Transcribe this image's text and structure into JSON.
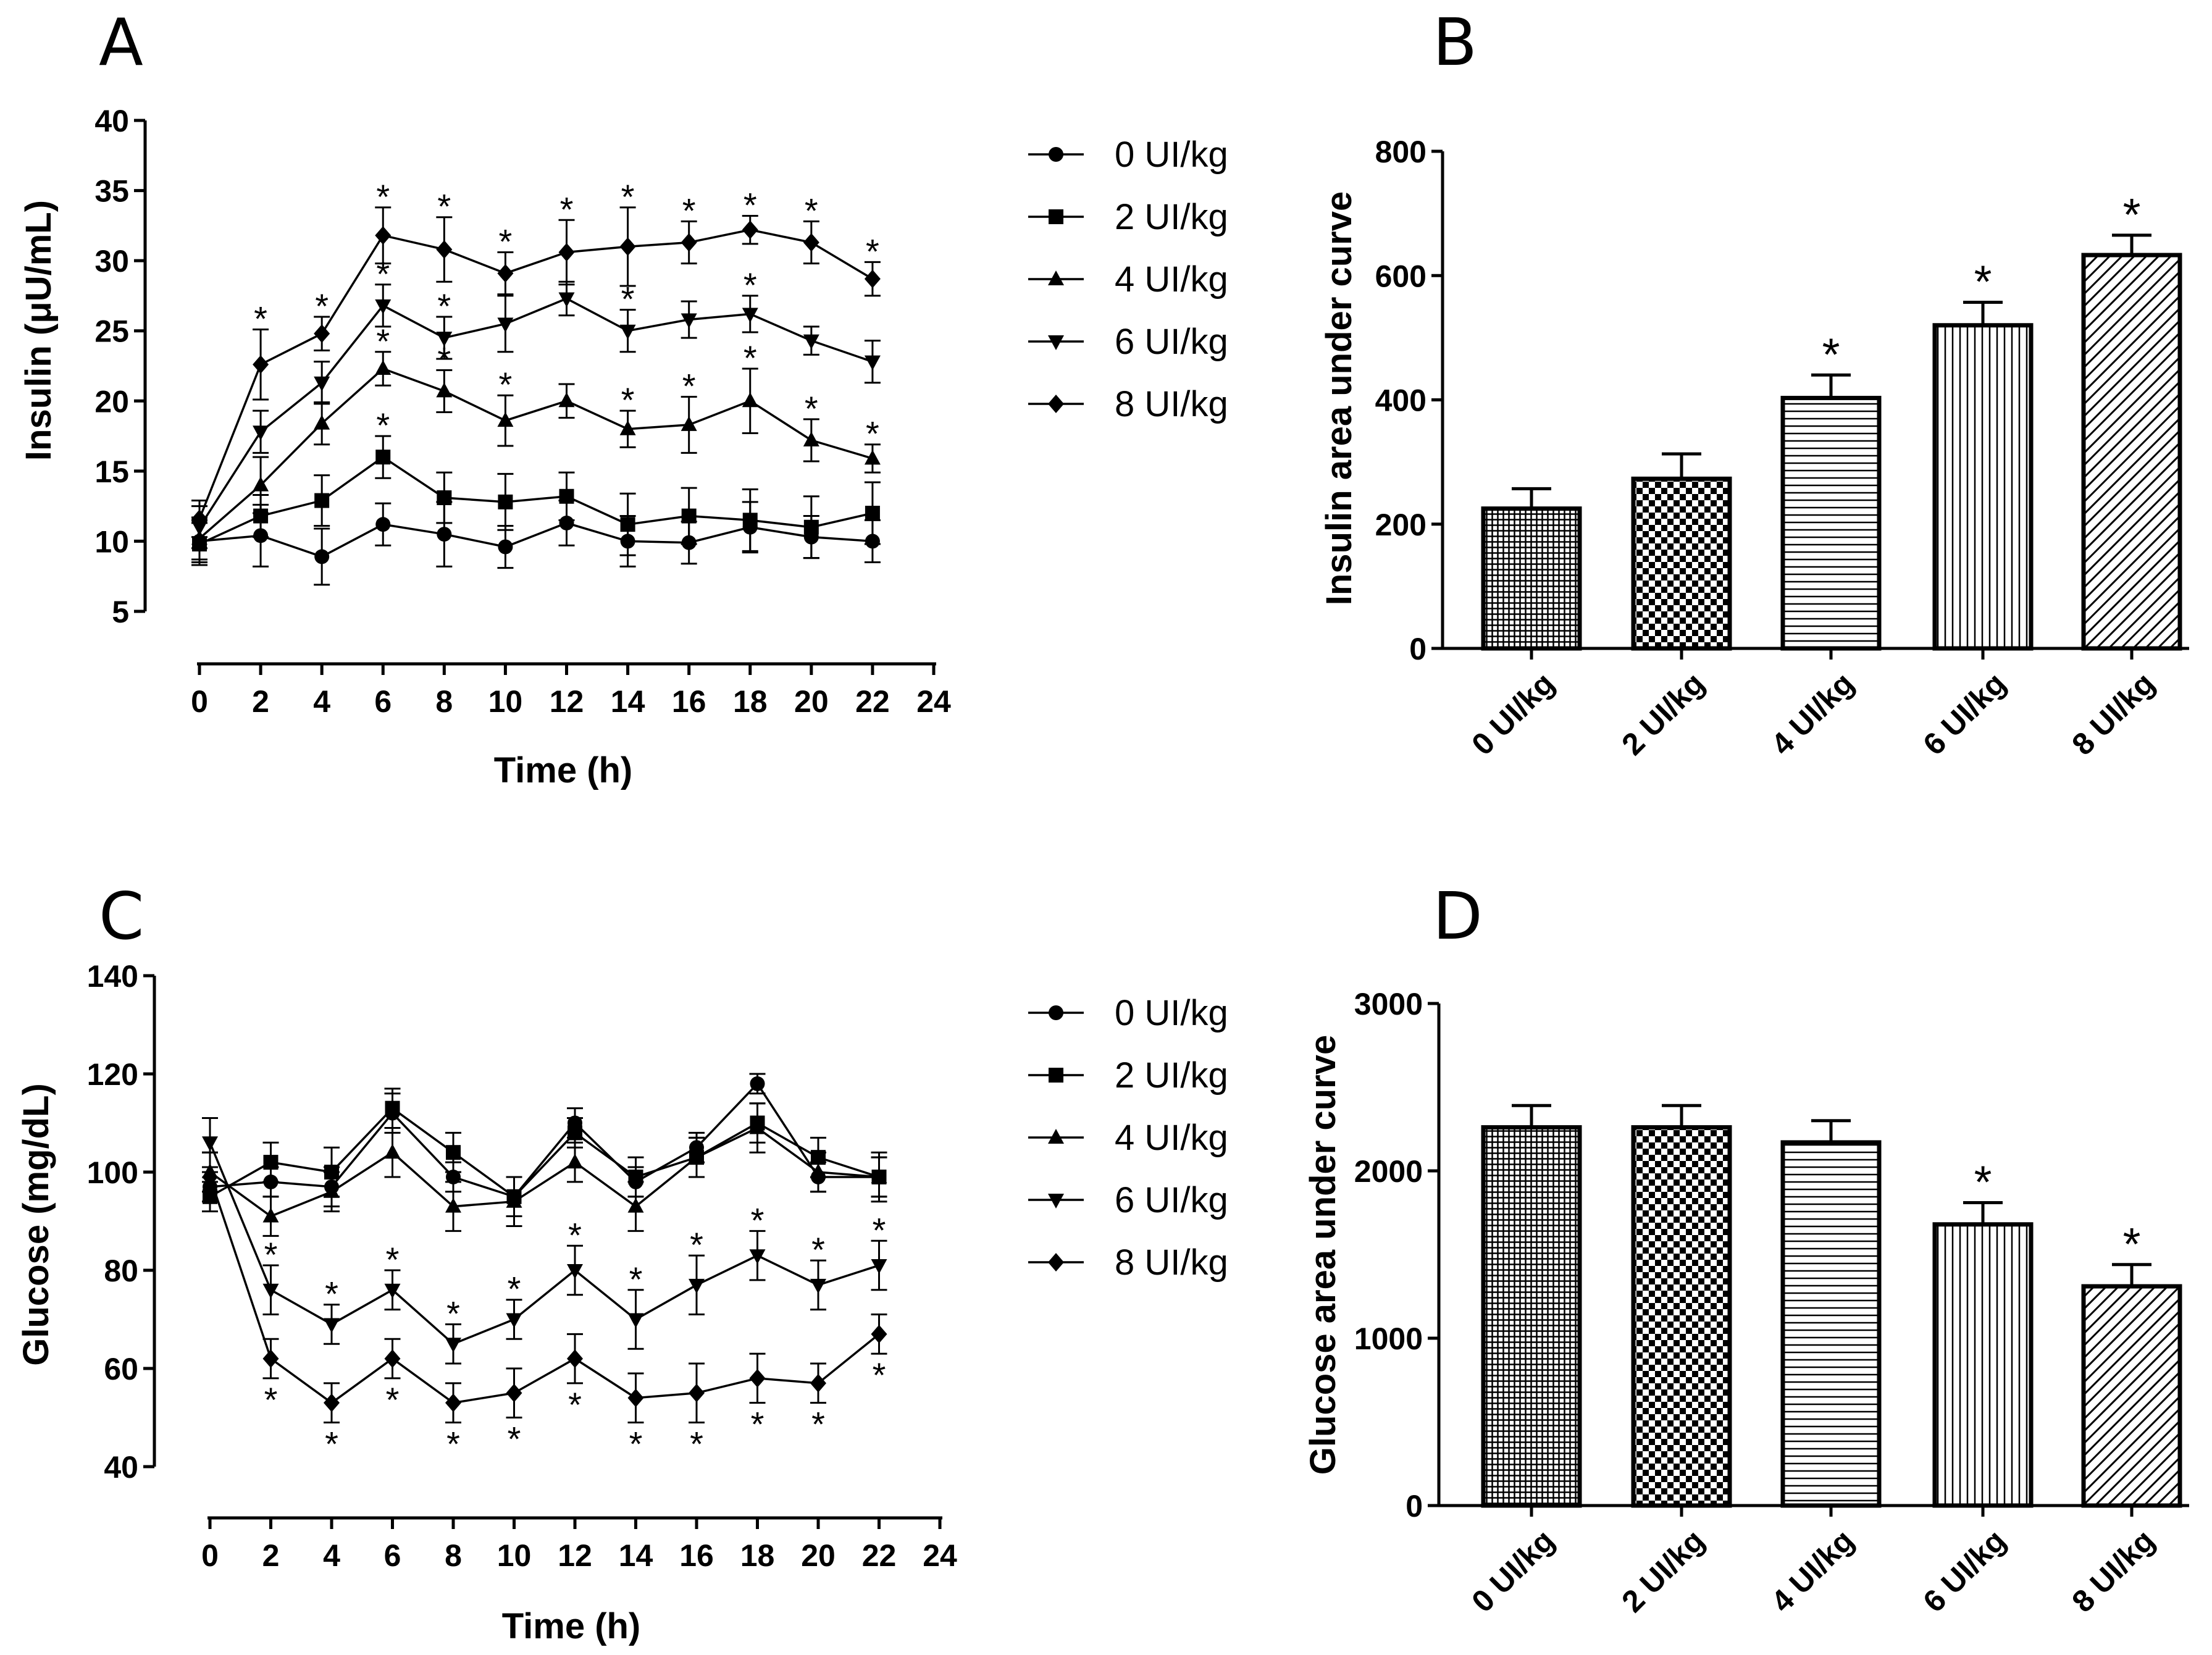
{
  "panels": [
    {
      "id": "A",
      "label": "A"
    },
    {
      "id": "B",
      "label": "B"
    },
    {
      "id": "C",
      "label": "C"
    },
    {
      "id": "D",
      "label": "D"
    }
  ],
  "chart_data": [
    {
      "id": "A",
      "type": "line",
      "xlabel": "Time (h)",
      "ylabel": "Insulin (μU/mL)",
      "xlim": [
        0,
        24
      ],
      "ylim": [
        5,
        40
      ],
      "xticks": [
        "0",
        "2",
        "4",
        "6",
        "8",
        "10",
        "12",
        "14",
        "16",
        "18",
        "20",
        "22",
        "24"
      ],
      "yticks": [
        "5",
        "10",
        "15",
        "20",
        "25",
        "30",
        "35",
        "40"
      ],
      "x": [
        0,
        2,
        4,
        6,
        8,
        10,
        12,
        14,
        16,
        18,
        20,
        22
      ],
      "series": [
        {
          "name": "0 UI/kg",
          "marker": "circle",
          "values": [
            10.0,
            10.4,
            8.9,
            11.2,
            10.5,
            9.6,
            11.3,
            10.0,
            9.9,
            11.0,
            10.3,
            10.0
          ],
          "errors": [
            1.5,
            2.2,
            2.0,
            1.5,
            2.3,
            1.5,
            1.6,
            1.8,
            1.5,
            1.8,
            1.5,
            1.5
          ],
          "stars_above": [],
          "stars_below": []
        },
        {
          "name": "2 UI/kg",
          "marker": "square",
          "values": [
            9.8,
            11.8,
            12.9,
            16.0,
            13.1,
            12.8,
            13.2,
            11.2,
            11.8,
            11.5,
            11.0,
            12.0
          ],
          "errors": [
            1.5,
            1.5,
            1.8,
            1.5,
            1.8,
            2.0,
            1.7,
            2.2,
            2.0,
            2.2,
            2.2,
            2.2
          ],
          "stars_above": [
            6
          ],
          "stars_below": []
        },
        {
          "name": "4 UI/kg",
          "marker": "triangle-up",
          "values": [
            10.2,
            14.0,
            18.4,
            22.3,
            20.7,
            18.6,
            20.0,
            18.0,
            18.3,
            20.0,
            17.2,
            15.9
          ],
          "errors": [
            1.5,
            2.0,
            1.5,
            1.2,
            1.5,
            1.8,
            1.2,
            1.3,
            2.0,
            2.3,
            1.5,
            1.0
          ],
          "stars_above": [
            6,
            8,
            10,
            14,
            16,
            18,
            20,
            22
          ],
          "stars_below": []
        },
        {
          "name": "6 UI/kg",
          "marker": "triangle-down",
          "values": [
            11.0,
            17.8,
            21.3,
            26.8,
            24.5,
            25.5,
            27.3,
            25.0,
            25.8,
            26.2,
            24.3,
            22.8
          ],
          "errors": [
            1.5,
            1.5,
            1.5,
            1.5,
            1.5,
            2.0,
            1.2,
            1.5,
            1.3,
            1.3,
            1.0,
            1.5
          ],
          "stars_above": [
            6,
            8,
            14,
            18
          ],
          "stars_below": []
        },
        {
          "name": "8 UI/kg",
          "marker": "diamond",
          "values": [
            11.6,
            22.6,
            24.8,
            31.8,
            30.8,
            29.1,
            30.6,
            31.0,
            31.3,
            32.2,
            31.3,
            28.7
          ],
          "errors": [
            1.3,
            2.5,
            1.2,
            2.0,
            2.3,
            1.5,
            2.3,
            2.8,
            1.5,
            1.0,
            1.5,
            1.2
          ],
          "stars_above": [
            2,
            4,
            6,
            8,
            10,
            12,
            14,
            16,
            18,
            20,
            22
          ],
          "stars_below": []
        }
      ]
    },
    {
      "id": "B",
      "type": "bar",
      "ylabel": "Insulin area under curve",
      "ylim": [
        0,
        800
      ],
      "yticks": [
        "0",
        "200",
        "400",
        "600",
        "800"
      ],
      "categories": [
        "0 UI/kg",
        "2 UI/kg",
        "4 UI/kg",
        "6 UI/kg",
        "8 UI/kg"
      ],
      "values": [
        225,
        273,
        403,
        520,
        633
      ],
      "errors": [
        32,
        40,
        37,
        37,
        32
      ],
      "patterns": [
        "grid-fine",
        "checker",
        "horizontal",
        "vertical",
        "diagonal"
      ],
      "significant": [
        false,
        false,
        true,
        true,
        true
      ]
    },
    {
      "id": "C",
      "type": "line",
      "xlabel": "Time (h)",
      "ylabel": "Glucose (mg/dL)",
      "xlim": [
        0,
        24
      ],
      "ylim": [
        40,
        140
      ],
      "xticks": [
        "0",
        "2",
        "4",
        "6",
        "8",
        "10",
        "12",
        "14",
        "16",
        "18",
        "20",
        "22",
        "24"
      ],
      "yticks": [
        "40",
        "60",
        "80",
        "100",
        "120",
        "140"
      ],
      "x": [
        0,
        2,
        4,
        6,
        8,
        10,
        12,
        14,
        16,
        18,
        20,
        22
      ],
      "series": [
        {
          "name": "0 UI/kg",
          "marker": "circle",
          "values": [
            97,
            98,
            97,
            112,
            99,
            95,
            110,
            98,
            105,
            118,
            99,
            99
          ],
          "errors": [
            3,
            3,
            4,
            4,
            3,
            4,
            3,
            3,
            3,
            2,
            3,
            4
          ],
          "stars_above": [],
          "stars_below": []
        },
        {
          "name": "2 UI/kg",
          "marker": "square",
          "values": [
            95,
            102,
            100,
            113,
            104,
            95,
            108,
            99,
            103,
            110,
            103,
            99
          ],
          "errors": [
            3,
            4,
            5,
            4,
            4,
            4,
            3,
            4,
            4,
            4,
            4,
            4
          ],
          "stars_above": [],
          "stars_below": []
        },
        {
          "name": "4 UI/kg",
          "marker": "triangle-up",
          "values": [
            100,
            91,
            96,
            104,
            93,
            94,
            102,
            93,
            103,
            109,
            100,
            99
          ],
          "errors": [
            4,
            4,
            4,
            5,
            5,
            5,
            4,
            5,
            4,
            5,
            4,
            5
          ],
          "stars_above": [],
          "stars_below": []
        },
        {
          "name": "6 UI/kg",
          "marker": "triangle-down",
          "values": [
            106,
            76,
            69,
            76,
            65,
            70,
            80,
            70,
            77,
            83,
            77,
            81
          ],
          "errors": [
            5,
            5,
            4,
            4,
            4,
            4,
            5,
            6,
            6,
            5,
            5,
            5
          ],
          "stars_above": [
            2,
            4,
            6,
            8,
            10,
            12,
            14,
            16,
            18,
            20,
            22
          ],
          "stars_below": []
        },
        {
          "name": "8 UI/kg",
          "marker": "diamond",
          "values": [
            99,
            62,
            53,
            62,
            53,
            55,
            62,
            54,
            55,
            58,
            57,
            67
          ],
          "errors": [
            5,
            4,
            4,
            4,
            4,
            5,
            5,
            5,
            6,
            5,
            4,
            4
          ],
          "stars_above": [],
          "stars_below": [
            2,
            4,
            6,
            8,
            10,
            12,
            14,
            16,
            18,
            20,
            22
          ]
        }
      ]
    },
    {
      "id": "D",
      "type": "bar",
      "ylabel": "Glucose area under curve",
      "ylim": [
        0,
        3000
      ],
      "yticks": [
        "0",
        "1000",
        "2000",
        "3000"
      ],
      "categories": [
        "0 UI/kg",
        "2 UI/kg",
        "4 UI/kg",
        "6 UI/kg",
        "8 UI/kg"
      ],
      "values": [
        2260,
        2260,
        2170,
        1680,
        1310
      ],
      "errors": [
        130,
        130,
        130,
        130,
        130
      ],
      "patterns": [
        "grid-fine",
        "checker",
        "horizontal",
        "vertical",
        "diagonal"
      ],
      "significant": [
        false,
        false,
        false,
        true,
        true
      ]
    }
  ],
  "significance_marker": "*"
}
